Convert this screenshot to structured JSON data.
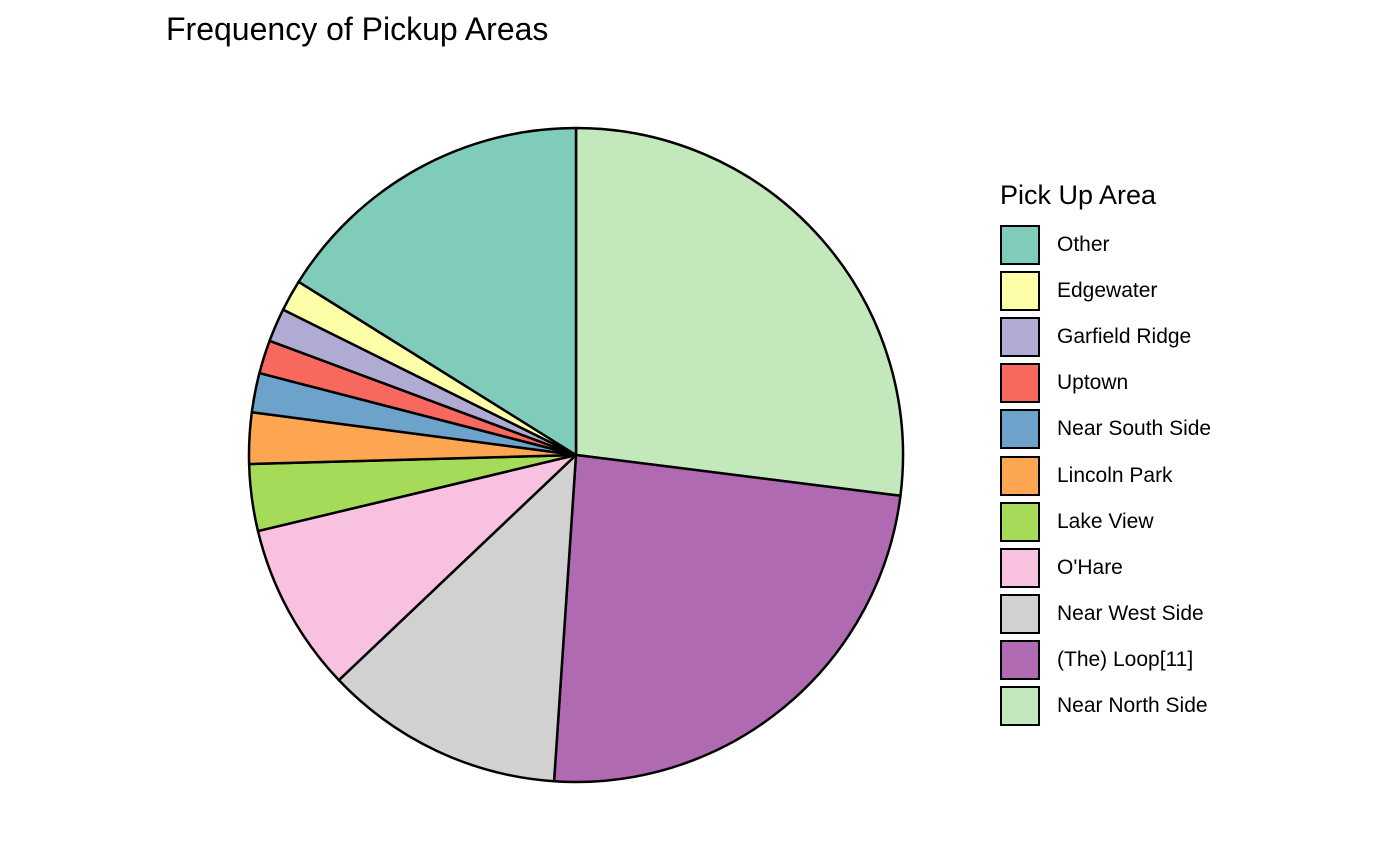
{
  "chart_data": {
    "type": "pie",
    "title": "Frequency of Pickup Areas",
    "legend_title": "Pick Up Area",
    "legend_position": "right",
    "slices": [
      {
        "label": "Near North Side",
        "value": 27.8,
        "color": "#C3E8BB"
      },
      {
        "label": "(The)  Loop[11]",
        "value": 24.8,
        "color": "#AF6AB1"
      },
      {
        "label": "Near West Side",
        "value": 12.2,
        "color": "#D1D1D1"
      },
      {
        "label": "O'Hare",
        "value": 8.6,
        "color": "#F8C1E0"
      },
      {
        "label": "Lake View",
        "value": 3.4,
        "color": "#A6DB5A"
      },
      {
        "label": "Lincoln Park",
        "value": 2.6,
        "color": "#FDA651"
      },
      {
        "label": "Near South Side",
        "value": 2.0,
        "color": "#6DA3CB"
      },
      {
        "label": "Uptown",
        "value": 1.7,
        "color": "#F7695F"
      },
      {
        "label": "Garfield Ridge",
        "value": 1.7,
        "color": "#B0ABD2"
      },
      {
        "label": "Edgewater",
        "value": 1.6,
        "color": "#FFFEA8"
      },
      {
        "label": "Other",
        "value": 16.6,
        "color": "#7FCCBB"
      }
    ]
  }
}
